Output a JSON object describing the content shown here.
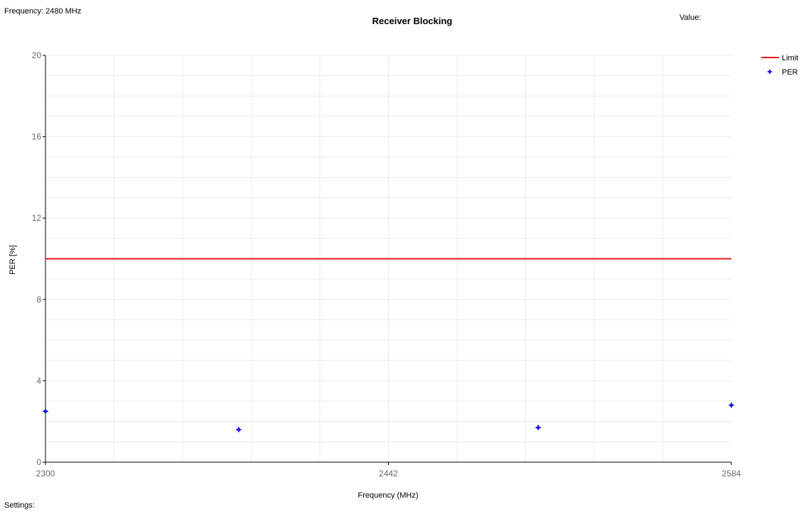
{
  "header": {
    "frequency_readout": "Frequency: 2480 MHz",
    "value_readout": "Value:",
    "settings_label": "Settings:"
  },
  "colors": {
    "limit": "#e8161b",
    "per": "#1010e0",
    "grid": "#ebebeb",
    "axis": "#000000"
  },
  "chart_data": {
    "type": "scatter",
    "title": "Receiver Blocking",
    "xlabel": "Frequency (MHz)",
    "ylabel": "PER [%]",
    "xlim": [
      2300,
      2584
    ],
    "ylim": [
      0,
      20
    ],
    "xticks": [
      2300,
      2442,
      2584
    ],
    "yticks": [
      0,
      4,
      8,
      12,
      16,
      20
    ],
    "grid": true,
    "legend_position": "top-right",
    "series": [
      {
        "name": "Limit",
        "kind": "line",
        "x": [
          2300,
          2584
        ],
        "y": [
          10,
          10
        ]
      },
      {
        "name": "PER",
        "kind": "points",
        "x": [
          2300,
          2380,
          2504,
          2584
        ],
        "y": [
          2.5,
          1.6,
          1.7,
          2.8
        ]
      }
    ]
  }
}
